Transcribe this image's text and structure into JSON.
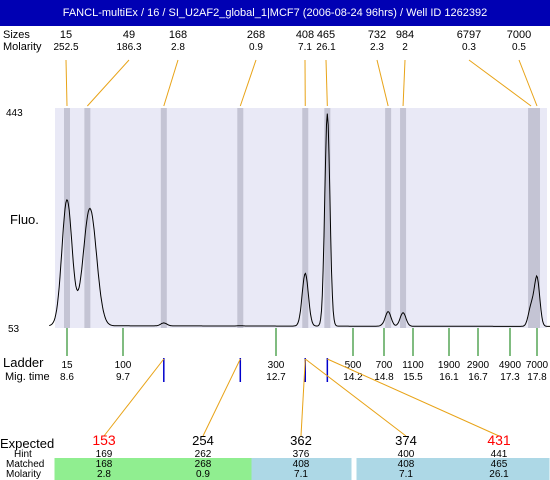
{
  "title": "FANCL-multiEx / 16 / SI_U2AF2_global_1|MCF7 (2006-08-24 96hrs) / Well ID 1262392",
  "labels": {
    "sizes": "Sizes",
    "molarity": "Molarity",
    "fluo": "Fluo.",
    "ladder": "Ladder",
    "mig_time": "Mig. time",
    "expected": "Expected",
    "hint": "Hint",
    "matched": "Matched",
    "bottom_molarity": "Molarity"
  },
  "colors": {
    "title_bg": "#0000b3",
    "plot_bg": "#e9e9f6",
    "peak_band": "#c4c4d4",
    "connector": "#e8a317",
    "ladder_tick": "#007a00",
    "sample_tick": "#0000cc",
    "matched_green": "#90ee90",
    "matched_blue": "#add8e6",
    "expected_red": "#ff0000"
  },
  "chart_data": {
    "type": "line",
    "ylabel": "Fluo.",
    "y_ticks": [
      "443",
      "53"
    ],
    "ylim": [
      53,
      443
    ],
    "top_peaks": [
      {
        "size": "15",
        "molarity": "252.5",
        "time": 8.6
      },
      {
        "size": "49",
        "molarity": "186.3",
        "time": 9.0
      },
      {
        "size": "168",
        "molarity": "2.8",
        "time": 10.5
      },
      {
        "size": "268",
        "molarity": "0.9",
        "time": 12.0
      },
      {
        "size": "408",
        "molarity": "7.1",
        "time": 13.27
      },
      {
        "size": "465",
        "molarity": "26.1",
        "time": 13.7
      },
      {
        "size": "732",
        "molarity": "2.3",
        "time": 14.9
      },
      {
        "size": "984",
        "molarity": "2",
        "time": 15.26
      },
      {
        "size": "6797",
        "molarity": "0.3",
        "time": 17.69
      },
      {
        "size": "7000",
        "molarity": "0.5",
        "time": 17.8
      }
    ],
    "trace_peaks": [
      {
        "time": 8.6,
        "height": 280
      },
      {
        "time": 9.05,
        "height": 265
      },
      {
        "time": 10.5,
        "height": 62
      },
      {
        "time": 12.0,
        "height": 57
      },
      {
        "time": 13.27,
        "height": 150
      },
      {
        "time": 13.7,
        "height": 433
      },
      {
        "time": 14.9,
        "height": 82
      },
      {
        "time": 15.26,
        "height": 80
      },
      {
        "time": 17.69,
        "height": 90
      },
      {
        "time": 17.8,
        "height": 142
      }
    ],
    "ladder": [
      {
        "size": "15",
        "time": "8.6"
      },
      {
        "size": "100",
        "time": "9.7"
      },
      {
        "size": "300",
        "time": "12.7"
      },
      {
        "size": "500",
        "time": "14.2"
      },
      {
        "size": "700",
        "time": "14.8"
      },
      {
        "size": "1100",
        "time": "15.5"
      },
      {
        "size": "1900",
        "time": "16.1"
      },
      {
        "size": "2900",
        "time": "16.7"
      },
      {
        "size": "4900",
        "time": "17.3"
      },
      {
        "size": "7000",
        "time": "17.8"
      }
    ],
    "bottom_peak_times": [
      10.5,
      12.0,
      13.27,
      13.7
    ]
  },
  "expected": [
    {
      "expected": "153",
      "hint": "169",
      "matched": "168",
      "molarity": "2.8",
      "highlight": true,
      "match_color": "green",
      "peak_time": 10.5
    },
    {
      "expected": "254",
      "hint": "262",
      "matched": "268",
      "molarity": "0.9",
      "highlight": false,
      "match_color": "green",
      "peak_time": 12.0
    },
    {
      "expected": "362",
      "hint": "376",
      "matched": "408",
      "molarity": "7.1",
      "highlight": false,
      "match_color": "blue",
      "peak_time": 13.27
    },
    {
      "expected": "374",
      "hint": "400",
      "matched": "408",
      "molarity": "7.1",
      "highlight": false,
      "match_color": "blue",
      "peak_time": 13.27
    },
    {
      "expected": "431",
      "hint": "441",
      "matched": "465",
      "molarity": "26.1",
      "highlight": true,
      "match_color": "blue",
      "peak_time": 13.7
    }
  ]
}
